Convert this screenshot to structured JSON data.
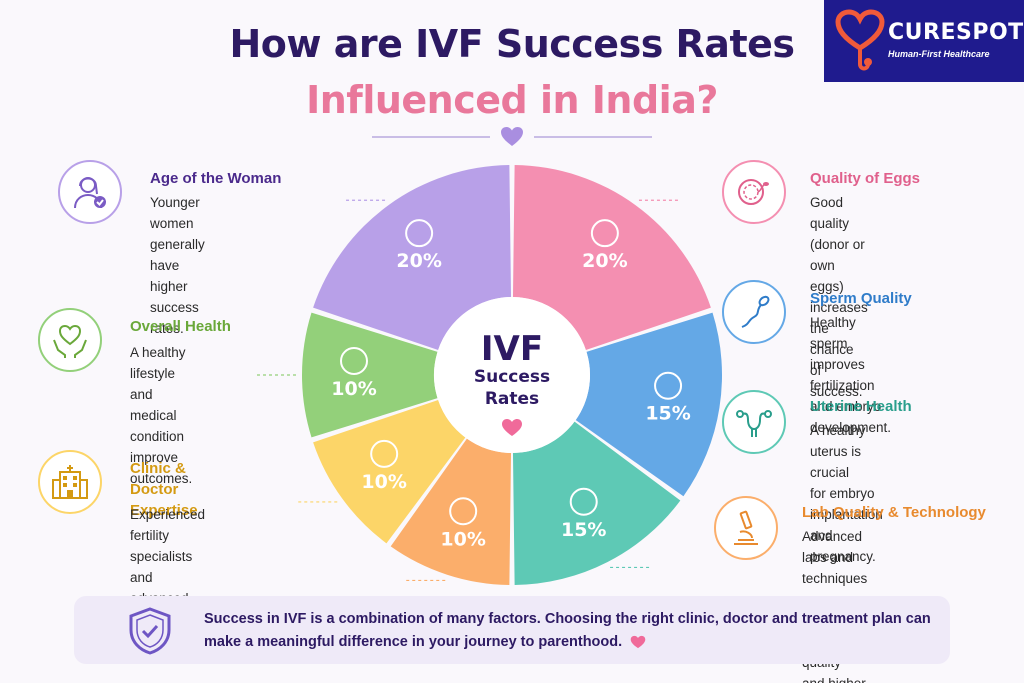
{
  "title": {
    "line1": "How are IVF Success Rates",
    "line2": "Influenced in India?"
  },
  "logo": {
    "name": "CURESPOTS",
    "tagline": "Human-First Healthcare",
    "icon": "stethoscope-heart-icon"
  },
  "colors": {
    "title_dark": "#2d1a63",
    "title_pink": "#e9789b",
    "brand": "#1f1b8e"
  },
  "chart_data": {
    "type": "pie",
    "center_label": {
      "line1": "IVF",
      "line2": "Success",
      "line3": "Rates"
    },
    "slices": [
      {
        "label": "Quality of Eggs",
        "value": 20,
        "display": "20%",
        "color": "#f48fb1",
        "icon": "egg-sperm-icon"
      },
      {
        "label": "Sperm Quality",
        "value": 15,
        "display": "15%",
        "color": "#64a8e6",
        "icon": "sperm-icon"
      },
      {
        "label": "Uterine Health",
        "value": 15,
        "display": "15%",
        "color": "#5ec9b5",
        "icon": "uterus-icon"
      },
      {
        "label": "Lab Quality & Technology",
        "value": 10,
        "display": "10%",
        "color": "#fbae6b",
        "icon": "microscope-icon"
      },
      {
        "label": "Clinic & Doctor Expertise",
        "value": 10,
        "display": "10%",
        "color": "#fcd568",
        "icon": "hospital-icon"
      },
      {
        "label": "Overall Health",
        "value": 10,
        "display": "10%",
        "color": "#93d07a",
        "icon": "hands-heart-icon"
      },
      {
        "label": "Age of the Woman",
        "value": 20,
        "display": "20%",
        "color": "#b8a0e8",
        "icon": "woman-check-icon"
      }
    ]
  },
  "factors": {
    "age": {
      "title": "Age of the Woman",
      "desc": "Younger women generally\nhave higher success\nrates.",
      "color": "#4b2a8c"
    },
    "health": {
      "title": "Overall Health",
      "desc": "A healthy lifestyle and\nmedical condition\nimprove outcomes.",
      "color": "#6aa83a"
    },
    "clinic": {
      "title": "Clinic & Doctor\nExpertise",
      "desc": "Experienced fertility\nspecialists and advanced\ninfrastructure matter.",
      "color": "#d49a12"
    },
    "eggs": {
      "title": "Quality of Eggs",
      "desc": "Good quality (donor or own\neggs) increases the chance\nof success.",
      "color": "#e0608c"
    },
    "sperm": {
      "title": "Sperm Quality",
      "desc": "Healthy sperm improves\nfertilization and embryo\ndevelopment.",
      "color": "#2f7cc9"
    },
    "uterine": {
      "title": "Uterine Health",
      "desc": "A healthy uterus is crucial\nfor embryo implantation\nand pregnancy.",
      "color": "#2a9e8c"
    },
    "lab": {
      "title": "Lab Quality & Technology",
      "desc": "Advanced labs and techniques\nensure better embryo quality\nand higher success.",
      "color": "#e88a2e"
    }
  },
  "footer": {
    "text": "Success in IVF is a combination of many factors. Choosing the right clinic, doctor and treatment plan can make a meaningful difference in your journey to parenthood.",
    "icon": "shield-check-icon"
  }
}
